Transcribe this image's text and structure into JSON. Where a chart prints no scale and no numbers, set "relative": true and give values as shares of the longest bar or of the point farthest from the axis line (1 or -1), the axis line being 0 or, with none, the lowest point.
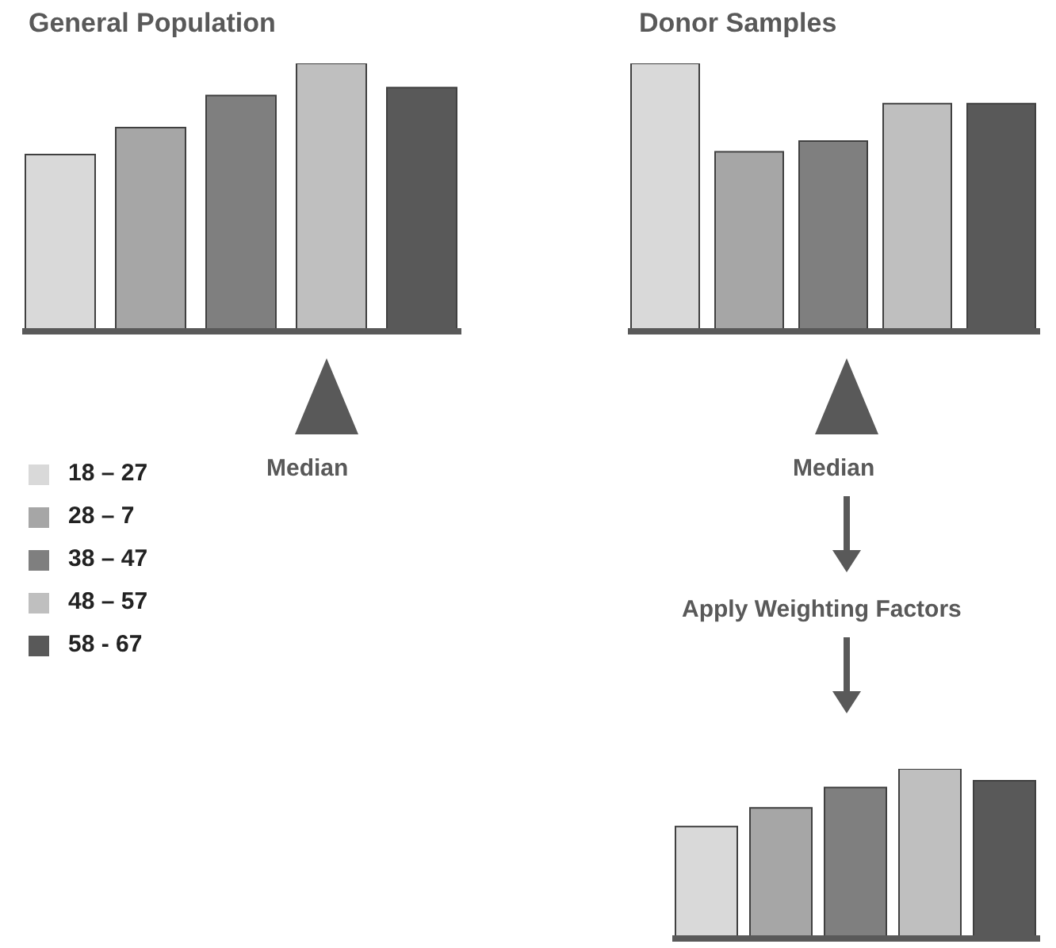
{
  "chart_data": [
    {
      "type": "bar",
      "title": "General Population",
      "relative": true,
      "categories": [
        null
      ],
      "legend": "bottom left",
      "annotations": [
        "Median"
      ],
      "series": [
        {
          "name": "18 – 27",
          "color": "#d9d9d9",
          "values": [
            0.66
          ]
        },
        {
          "name": "28 – 7",
          "color": "#a6a6a6",
          "values": [
            0.76
          ]
        },
        {
          "name": "38 – 47",
          "color": "#7f7f7f",
          "values": [
            0.88
          ]
        },
        {
          "name": "48 – 57",
          "color": "#bfbfbf",
          "values": [
            1
          ]
        },
        {
          "name": "58 - 67",
          "color": "#595959",
          "values": [
            0.91
          ]
        }
      ]
    },
    {
      "type": "bar",
      "title": "Donor Samples",
      "relative": true,
      "categories": [
        null
      ],
      "annotations": [
        "Median",
        "Apply Weighting Factors"
      ],
      "series": [
        {
          "color": "#d9d9d9",
          "values": [
            1
          ]
        },
        {
          "color": "#a6a6a6",
          "values": [
            0.67
          ]
        },
        {
          "color": "#7f7f7f",
          "values": [
            0.71
          ]
        },
        {
          "color": "#bfbfbf",
          "values": [
            0.85
          ]
        },
        {
          "color": "#595959",
          "values": [
            0.85
          ]
        }
      ]
    },
    {
      "type": "bar",
      "relative": true,
      "categories": [
        null
      ],
      "series": [
        {
          "color": "#d9d9d9",
          "values": [
            0.66
          ]
        },
        {
          "color": "#a6a6a6",
          "values": [
            0.77
          ]
        },
        {
          "color": "#7f7f7f",
          "values": [
            0.89
          ]
        },
        {
          "color": "#bfbfbf",
          "values": [
            1
          ]
        },
        {
          "color": "#595959",
          "values": [
            0.93
          ]
        }
      ]
    }
  ]
}
